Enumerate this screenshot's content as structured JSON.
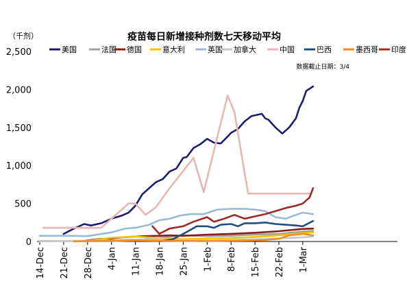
{
  "chart_data": {
    "type": "line",
    "title": "疫苗每日新增接种剂数七天移动平均",
    "ylabel": "（千剂）",
    "annotation": "数据截止日期：3/4",
    "ylim": [
      0,
      2500
    ],
    "yticks": [
      0,
      500,
      1000,
      1500,
      2000,
      2500
    ],
    "ytick_labels": [
      "0",
      "500",
      "1,000",
      "1,500",
      "2,000",
      "2,500"
    ],
    "xtick_labels": [
      "14-Dec",
      "21-Dec",
      "28-Dec",
      "4-Jan",
      "11-Jan",
      "18-Jan",
      "25-Jan",
      "1-Feb",
      "8-Feb",
      "15-Feb",
      "22-Feb",
      "1-Mar"
    ],
    "x_start": "2020-12-14",
    "x_end": "2021-03-04",
    "grid": false,
    "legend_position": "top",
    "series": [
      {
        "name": "美国",
        "color": "#1c1c6e",
        "points": [
          [
            "2020-12-21",
            100
          ],
          [
            "2020-12-24",
            170
          ],
          [
            "2020-12-27",
            230
          ],
          [
            "2020-12-29",
            210
          ],
          [
            "2021-01-01",
            240
          ],
          [
            "2021-01-04",
            300
          ],
          [
            "2021-01-07",
            340
          ],
          [
            "2021-01-09",
            380
          ],
          [
            "2021-01-11",
            470
          ],
          [
            "2021-01-13",
            620
          ],
          [
            "2021-01-15",
            700
          ],
          [
            "2021-01-17",
            780
          ],
          [
            "2021-01-19",
            820
          ],
          [
            "2021-01-21",
            920
          ],
          [
            "2021-01-23",
            960
          ],
          [
            "2021-01-25",
            1100
          ],
          [
            "2021-01-26",
            1110
          ],
          [
            "2021-01-28",
            1230
          ],
          [
            "2021-01-30",
            1280
          ],
          [
            "2021-02-01",
            1350
          ],
          [
            "2021-02-03",
            1300
          ],
          [
            "2021-02-05",
            1290
          ],
          [
            "2021-02-07",
            1380
          ],
          [
            "2021-02-08",
            1430
          ],
          [
            "2021-02-10",
            1480
          ],
          [
            "2021-02-12",
            1580
          ],
          [
            "2021-02-14",
            1650
          ],
          [
            "2021-02-15",
            1660
          ],
          [
            "2021-02-17",
            1680
          ],
          [
            "2021-02-18",
            1620
          ],
          [
            "2021-02-19",
            1600
          ],
          [
            "2021-02-21",
            1500
          ],
          [
            "2021-02-23",
            1420
          ],
          [
            "2021-02-25",
            1500
          ],
          [
            "2021-02-27",
            1620
          ],
          [
            "2021-02-28",
            1760
          ],
          [
            "2021-03-01",
            1850
          ],
          [
            "2021-03-02",
            1980
          ],
          [
            "2021-03-04",
            2040
          ]
        ]
      },
      {
        "name": "法国",
        "color": "#a0a0a0",
        "points": [
          [
            "2020-12-14",
            5
          ],
          [
            "2021-01-04",
            5
          ],
          [
            "2021-01-11",
            15
          ],
          [
            "2021-01-18",
            50
          ],
          [
            "2021-01-25",
            80
          ],
          [
            "2021-02-01",
            70
          ],
          [
            "2021-02-08",
            75
          ],
          [
            "2021-02-15",
            90
          ],
          [
            "2021-02-22",
            100
          ],
          [
            "2021-03-01",
            130
          ],
          [
            "2021-03-04",
            140
          ]
        ]
      },
      {
        "name": "德国",
        "color": "#8b1a1a",
        "points": [
          [
            "2020-12-27",
            10
          ],
          [
            "2020-12-31",
            30
          ],
          [
            "2021-01-04",
            40
          ],
          [
            "2021-01-07",
            55
          ],
          [
            "2021-01-11",
            65
          ],
          [
            "2021-01-14",
            70
          ],
          [
            "2021-01-18",
            75
          ],
          [
            "2021-01-21",
            80
          ],
          [
            "2021-01-25",
            75
          ],
          [
            "2021-01-28",
            80
          ],
          [
            "2021-02-01",
            90
          ],
          [
            "2021-02-08",
            100
          ],
          [
            "2021-02-15",
            115
          ],
          [
            "2021-02-22",
            135
          ],
          [
            "2021-03-01",
            165
          ],
          [
            "2021-03-04",
            170
          ]
        ]
      },
      {
        "name": "意大利",
        "color": "#f5c400",
        "points": [
          [
            "2020-12-27",
            3
          ],
          [
            "2021-01-01",
            30
          ],
          [
            "2021-01-04",
            50
          ],
          [
            "2021-01-11",
            65
          ],
          [
            "2021-01-18",
            45
          ],
          [
            "2021-01-25",
            30
          ],
          [
            "2021-02-01",
            40
          ],
          [
            "2021-02-08",
            45
          ],
          [
            "2021-02-15",
            60
          ],
          [
            "2021-02-22",
            80
          ],
          [
            "2021-03-01",
            110
          ],
          [
            "2021-03-04",
            120
          ]
        ]
      },
      {
        "name": "英国",
        "color": "#9ab8d8",
        "points": [
          [
            "2020-12-14",
            75
          ],
          [
            "2020-12-21",
            75
          ],
          [
            "2020-12-28",
            70
          ],
          [
            "2021-01-04",
            120
          ],
          [
            "2021-01-08",
            170
          ],
          [
            "2021-01-11",
            180
          ],
          [
            "2021-01-15",
            220
          ],
          [
            "2021-01-18",
            280
          ],
          [
            "2021-01-21",
            300
          ],
          [
            "2021-01-24",
            340
          ],
          [
            "2021-01-27",
            360
          ],
          [
            "2021-01-31",
            360
          ],
          [
            "2021-02-04",
            420
          ],
          [
            "2021-02-08",
            430
          ],
          [
            "2021-02-12",
            430
          ],
          [
            "2021-02-15",
            420
          ],
          [
            "2021-02-18",
            400
          ],
          [
            "2021-02-21",
            320
          ],
          [
            "2021-02-24",
            300
          ],
          [
            "2021-02-27",
            350
          ],
          [
            "2021-03-01",
            380
          ],
          [
            "2021-03-04",
            360
          ]
        ]
      },
      {
        "name": "加拿大",
        "color": "#c8c8c8",
        "points": [
          [
            "2020-12-14",
            2
          ],
          [
            "2021-01-04",
            15
          ],
          [
            "2021-01-11",
            25
          ],
          [
            "2021-01-18",
            30
          ],
          [
            "2021-01-25",
            20
          ],
          [
            "2021-02-01",
            15
          ],
          [
            "2021-02-08",
            20
          ],
          [
            "2021-02-15",
            30
          ],
          [
            "2021-02-22",
            40
          ],
          [
            "2021-03-01",
            55
          ],
          [
            "2021-03-04",
            65
          ]
        ]
      },
      {
        "name": "中国",
        "color": "#e8b4b4",
        "points": [
          [
            "2020-12-15",
            180
          ],
          [
            "2021-01-01",
            180
          ],
          [
            "2021-01-09",
            500
          ],
          [
            "2021-01-11",
            500
          ],
          [
            "2021-01-14",
            350
          ],
          [
            "2021-01-17",
            450
          ],
          [
            "2021-01-21",
            700
          ],
          [
            "2021-01-28",
            1100
          ],
          [
            "2021-01-31",
            650
          ],
          [
            "2021-02-07",
            1920
          ],
          [
            "2021-02-09",
            1700
          ],
          [
            "2021-02-13",
            630
          ],
          [
            "2021-03-03",
            630
          ]
        ]
      },
      {
        "name": "巴西",
        "color": "#1f4e79",
        "points": [
          [
            "2021-01-18",
            2
          ],
          [
            "2021-01-22",
            30
          ],
          [
            "2021-01-25",
            100
          ],
          [
            "2021-01-27",
            150
          ],
          [
            "2021-01-29",
            200
          ],
          [
            "2021-02-01",
            200
          ],
          [
            "2021-02-03",
            180
          ],
          [
            "2021-02-05",
            220
          ],
          [
            "2021-02-08",
            230
          ],
          [
            "2021-02-10",
            200
          ],
          [
            "2021-02-12",
            240
          ],
          [
            "2021-02-15",
            240
          ],
          [
            "2021-02-18",
            250
          ],
          [
            "2021-02-21",
            230
          ],
          [
            "2021-02-24",
            220
          ],
          [
            "2021-02-27",
            210
          ],
          [
            "2021-03-01",
            200
          ],
          [
            "2021-03-04",
            270
          ]
        ]
      },
      {
        "name": "墨西哥",
        "color": "#f08c28",
        "points": [
          [
            "2020-12-24",
            2
          ],
          [
            "2021-01-11",
            15
          ],
          [
            "2021-01-18",
            10
          ],
          [
            "2021-02-01",
            5
          ],
          [
            "2021-02-15",
            15
          ],
          [
            "2021-02-18",
            20
          ],
          [
            "2021-02-22",
            35
          ],
          [
            "2021-02-25",
            80
          ],
          [
            "2021-03-01",
            100
          ],
          [
            "2021-03-04",
            80
          ]
        ]
      },
      {
        "name": "印度",
        "color": "#a02828",
        "points": [
          [
            "2021-01-16",
            200
          ],
          [
            "2021-01-18",
            100
          ],
          [
            "2021-01-21",
            170
          ],
          [
            "2021-01-25",
            200
          ],
          [
            "2021-01-28",
            260
          ],
          [
            "2021-02-01",
            320
          ],
          [
            "2021-02-03",
            260
          ],
          [
            "2021-02-06",
            300
          ],
          [
            "2021-02-09",
            350
          ],
          [
            "2021-02-12",
            300
          ],
          [
            "2021-02-15",
            330
          ],
          [
            "2021-02-18",
            360
          ],
          [
            "2021-02-21",
            400
          ],
          [
            "2021-02-24",
            440
          ],
          [
            "2021-02-27",
            470
          ],
          [
            "2021-03-01",
            500
          ],
          [
            "2021-03-03",
            580
          ],
          [
            "2021-03-04",
            700
          ]
        ]
      }
    ]
  }
}
